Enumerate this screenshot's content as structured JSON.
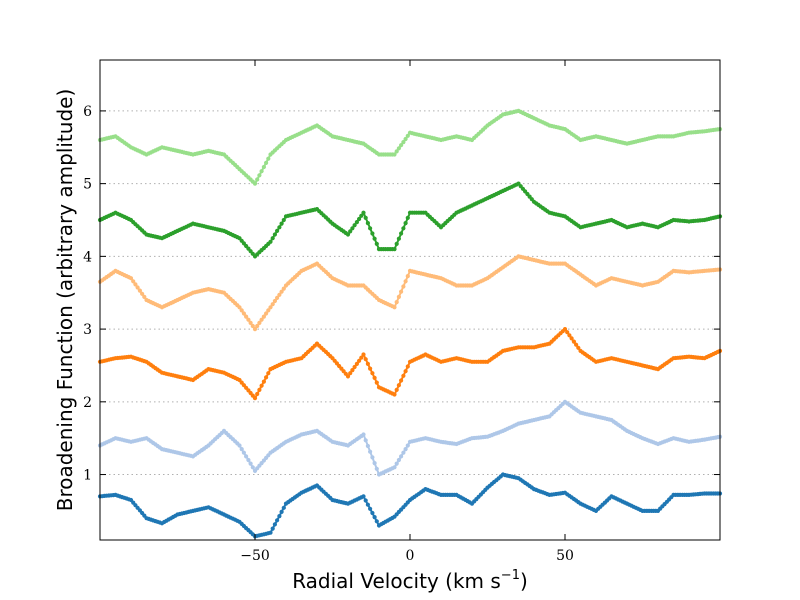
{
  "chart_data": {
    "type": "line",
    "title": "",
    "xlabel": "Radial Velocity (km s",
    "xlabel_sup": "−1",
    "xlabel_end": ")",
    "ylabel": "Broadening Function (arbitrary amplitude)",
    "xlim": [
      -100,
      100
    ],
    "ylim": [
      0.1,
      6.7
    ],
    "x_ticks": [
      -50,
      0,
      50
    ],
    "x_tick_labels": [
      "−50",
      "0",
      "50"
    ],
    "y_ticks": [
      1,
      2,
      3,
      4,
      5,
      6
    ],
    "y_tick_labels": [
      "1",
      "2",
      "3",
      "4",
      "5",
      "6"
    ],
    "grid": "horizontal-dotted",
    "legend": "none",
    "x": [
      -100,
      -95,
      -90,
      -85,
      -80,
      -75,
      -70,
      -65,
      -60,
      -55,
      -50,
      -45,
      -40,
      -35,
      -30,
      -25,
      -20,
      -15,
      -10,
      -5,
      0,
      5,
      10,
      15,
      20,
      25,
      30,
      35,
      40,
      45,
      50,
      55,
      60,
      65,
      70,
      75,
      80,
      85,
      90,
      95,
      100
    ],
    "series": [
      {
        "color": "#1f77b4",
        "values": [
          0.7,
          0.72,
          0.65,
          0.4,
          0.33,
          0.45,
          0.5,
          0.55,
          0.45,
          0.35,
          0.15,
          0.2,
          0.6,
          0.75,
          0.85,
          0.65,
          0.6,
          0.7,
          0.3,
          0.42,
          0.65,
          0.8,
          0.72,
          0.72,
          0.6,
          0.82,
          1.0,
          0.95,
          0.8,
          0.72,
          0.75,
          0.6,
          0.5,
          0.7,
          0.6,
          0.5,
          0.5,
          0.72,
          0.72,
          0.74,
          0.74
        ]
      },
      {
        "color": "#aec7e8",
        "values": [
          1.4,
          1.5,
          1.45,
          1.5,
          1.35,
          1.3,
          1.25,
          1.4,
          1.6,
          1.4,
          1.05,
          1.3,
          1.45,
          1.55,
          1.6,
          1.45,
          1.4,
          1.55,
          1.0,
          1.1,
          1.45,
          1.5,
          1.45,
          1.42,
          1.5,
          1.52,
          1.6,
          1.7,
          1.75,
          1.8,
          2.0,
          1.85,
          1.8,
          1.75,
          1.6,
          1.5,
          1.42,
          1.5,
          1.45,
          1.48,
          1.52
        ]
      },
      {
        "color": "#ff7f0e",
        "values": [
          2.55,
          2.6,
          2.62,
          2.55,
          2.4,
          2.35,
          2.3,
          2.45,
          2.4,
          2.3,
          2.05,
          2.45,
          2.55,
          2.6,
          2.8,
          2.6,
          2.35,
          2.65,
          2.2,
          2.1,
          2.55,
          2.65,
          2.55,
          2.6,
          2.55,
          2.55,
          2.7,
          2.75,
          2.75,
          2.8,
          3.0,
          2.7,
          2.55,
          2.6,
          2.55,
          2.5,
          2.45,
          2.6,
          2.62,
          2.6,
          2.7
        ]
      },
      {
        "color": "#ffbb78",
        "values": [
          3.65,
          3.8,
          3.7,
          3.4,
          3.3,
          3.4,
          3.5,
          3.55,
          3.5,
          3.3,
          3.0,
          3.3,
          3.6,
          3.8,
          3.9,
          3.7,
          3.6,
          3.6,
          3.4,
          3.3,
          3.8,
          3.75,
          3.7,
          3.6,
          3.6,
          3.7,
          3.85,
          4.0,
          3.95,
          3.9,
          3.9,
          3.75,
          3.6,
          3.7,
          3.65,
          3.6,
          3.65,
          3.8,
          3.78,
          3.8,
          3.82
        ]
      },
      {
        "color": "#2ca02c",
        "values": [
          4.5,
          4.6,
          4.5,
          4.3,
          4.25,
          4.35,
          4.45,
          4.4,
          4.35,
          4.25,
          4.0,
          4.2,
          4.55,
          4.6,
          4.65,
          4.45,
          4.3,
          4.6,
          4.1,
          4.1,
          4.6,
          4.6,
          4.4,
          4.6,
          4.7,
          4.8,
          4.9,
          5.0,
          4.75,
          4.6,
          4.55,
          4.4,
          4.45,
          4.5,
          4.4,
          4.45,
          4.4,
          4.5,
          4.48,
          4.5,
          4.55
        ]
      },
      {
        "color": "#98df8a",
        "values": [
          5.6,
          5.65,
          5.5,
          5.4,
          5.5,
          5.45,
          5.4,
          5.45,
          5.4,
          5.2,
          5.0,
          5.4,
          5.6,
          5.7,
          5.8,
          5.65,
          5.6,
          5.55,
          5.4,
          5.4,
          5.7,
          5.65,
          5.6,
          5.65,
          5.6,
          5.8,
          5.95,
          6.0,
          5.9,
          5.8,
          5.75,
          5.6,
          5.65,
          5.6,
          5.55,
          5.6,
          5.65,
          5.65,
          5.7,
          5.72,
          5.75
        ]
      }
    ]
  }
}
